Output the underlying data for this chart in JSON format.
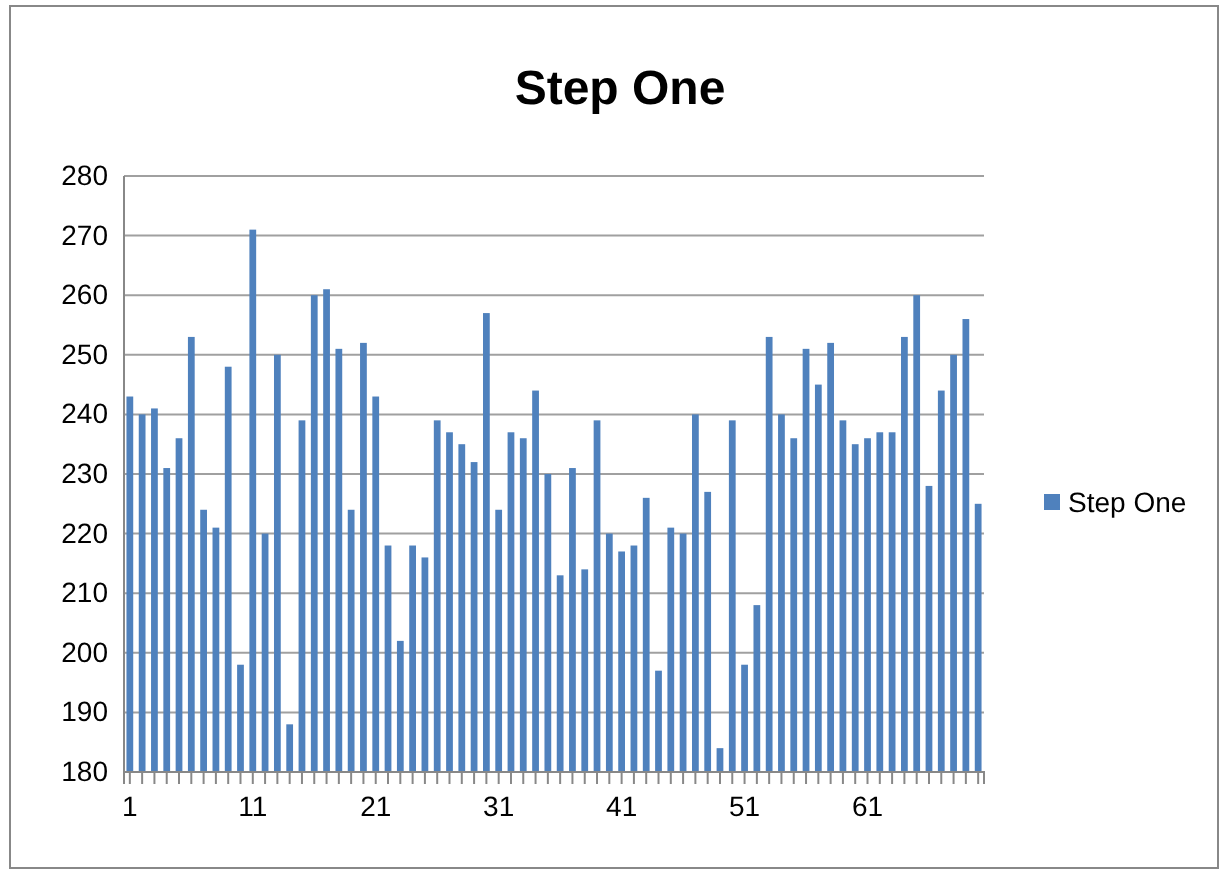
{
  "chart_data": {
    "type": "bar",
    "title": "Step One",
    "categories": [
      "1",
      null,
      null,
      null,
      null,
      null,
      null,
      null,
      null,
      null,
      "11",
      null,
      null,
      null,
      null,
      null,
      null,
      null,
      null,
      null,
      "21",
      null,
      null,
      null,
      null,
      null,
      null,
      null,
      null,
      null,
      "31",
      null,
      null,
      null,
      null,
      null,
      null,
      null,
      null,
      null,
      "41",
      null,
      null,
      null,
      null,
      null,
      null,
      null,
      null,
      null,
      "51",
      null,
      null,
      null,
      null,
      null,
      null,
      null,
      null,
      null,
      "61",
      null,
      null,
      null,
      null,
      null,
      null,
      null,
      null,
      null
    ],
    "series": [
      {
        "name": "Step One",
        "color": "#4f81bd",
        "values": [
          243,
          240,
          241,
          231,
          236,
          253,
          224,
          221,
          248,
          198,
          271,
          220,
          250,
          188,
          239,
          260,
          261,
          251,
          224,
          252,
          243,
          218,
          202,
          218,
          216,
          239,
          237,
          235,
          232,
          257,
          224,
          237,
          236,
          244,
          230,
          213,
          231,
          214,
          239,
          220,
          217,
          218,
          226,
          197,
          221,
          220,
          240,
          227,
          184,
          239,
          198,
          208,
          253,
          240,
          236,
          251,
          245,
          252,
          239,
          235,
          236,
          237,
          237,
          253,
          260,
          228,
          244,
          250,
          256,
          225
        ]
      }
    ],
    "ylim": [
      180,
      280
    ],
    "yticks": [
      180,
      190,
      200,
      210,
      220,
      230,
      240,
      250,
      260,
      270,
      280
    ],
    "grid": "y",
    "legend": "right"
  }
}
